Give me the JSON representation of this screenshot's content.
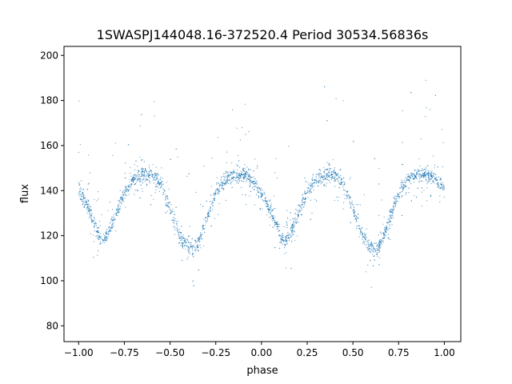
{
  "chart_data": {
    "type": "scatter",
    "title": "1SWASPJ144048.16-372520.4 Period 30534.56836s",
    "xlabel": "phase",
    "ylabel": "flux",
    "xlim": [
      -1.08,
      1.09
    ],
    "ylim": [
      73,
      204
    ],
    "xticks": [
      -1.0,
      -0.75,
      -0.5,
      -0.25,
      0.0,
      0.25,
      0.5,
      0.75,
      1.0
    ],
    "xtick_labels": [
      "−1.00",
      "−0.75",
      "−0.50",
      "−0.25",
      "0.00",
      "0.25",
      "0.50",
      "0.75",
      "1.00"
    ],
    "yticks": [
      80,
      100,
      120,
      140,
      160,
      180,
      200
    ],
    "ytick_labels": [
      "80",
      "100",
      "120",
      "140",
      "160",
      "180",
      "200"
    ],
    "grid": false,
    "series": [
      {
        "color": "#1f77b4",
        "marker": "point",
        "x": [
          -1.0,
          -0.95,
          -0.9,
          -0.875,
          -0.85,
          -0.8,
          -0.75,
          -0.7,
          -0.65,
          -0.6,
          -0.55,
          -0.5,
          -0.45,
          -0.4,
          -0.375,
          -0.35,
          -0.3,
          -0.25,
          -0.2,
          -0.15,
          -0.1,
          -0.05,
          0.0,
          0.05,
          0.1,
          0.125,
          0.15,
          0.2,
          0.25,
          0.3,
          0.35,
          0.4,
          0.45,
          0.5,
          0.55,
          0.6,
          0.625,
          0.65,
          0.7,
          0.75,
          0.8,
          0.85,
          0.9,
          0.95,
          1.0
        ],
        "y": [
          141,
          133,
          122,
          118,
          119,
          129,
          139,
          145,
          147,
          147,
          143,
          132,
          120,
          115,
          114,
          116,
          127,
          139,
          145,
          147,
          147,
          144,
          139,
          131,
          121,
          118,
          119,
          129,
          139,
          145,
          147,
          147,
          143,
          132,
          120,
          115,
          114,
          116,
          127,
          139,
          145,
          147,
          147,
          145,
          141
        ]
      }
    ]
  }
}
